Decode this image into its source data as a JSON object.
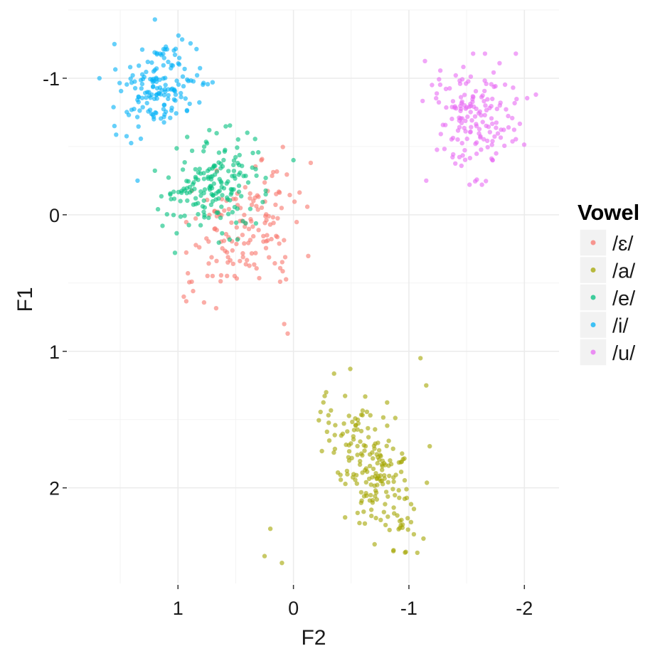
{
  "chart_data": {
    "type": "scatter",
    "xlabel": "F2",
    "ylabel": "F1",
    "x_reversed": true,
    "y_reversed": true,
    "xlim": [
      1.95,
      -2.3
    ],
    "ylim": [
      -1.5,
      2.7
    ],
    "x_ticks": [
      {
        "value": 1,
        "label": "1"
      },
      {
        "value": 0,
        "label": "0"
      },
      {
        "value": -1,
        "label": "-1"
      },
      {
        "value": -2,
        "label": "-2"
      }
    ],
    "y_ticks": [
      {
        "value": -1,
        "label": "-1"
      },
      {
        "value": 0,
        "label": "0"
      },
      {
        "value": 1,
        "label": "1"
      },
      {
        "value": 2,
        "label": "2"
      }
    ],
    "grid": true,
    "legend": {
      "title": "Vowel",
      "placement": "right"
    },
    "series": [
      {
        "name": "/ɛ/",
        "color": "#F8766D",
        "center": [
          0.4,
          0.1
        ],
        "spread": [
          0.22,
          0.22
        ],
        "correlation": 0.3,
        "n": 150,
        "seed": 11,
        "outliers": [
          [
            0.08,
            0.8
          ],
          [
            0.05,
            0.87
          ],
          [
            0.95,
            0.6
          ],
          [
            -0.15,
            -0.38
          ]
        ]
      },
      {
        "name": "/a/",
        "color": "#A3A500",
        "center": [
          -0.7,
          1.85
        ],
        "spread": [
          0.2,
          0.28
        ],
        "correlation": -0.55,
        "n": 200,
        "seed": 23,
        "outliers": [
          [
            0.25,
            2.5
          ],
          [
            0.1,
            2.55
          ],
          [
            -1.1,
            1.05
          ],
          [
            -1.15,
            1.25
          ],
          [
            0.2,
            2.3
          ]
        ]
      },
      {
        "name": "/e/",
        "color": "#00BF7D",
        "center": [
          0.72,
          -0.2
        ],
        "spread": [
          0.2,
          0.18
        ],
        "correlation": 0.2,
        "n": 175,
        "seed": 37,
        "outliers": [
          [
            0.0,
            -0.4
          ],
          [
            0.92,
            -0.57
          ]
        ]
      },
      {
        "name": "/i/",
        "color": "#00B0F6",
        "center": [
          1.15,
          -0.93
        ],
        "spread": [
          0.17,
          0.15
        ],
        "correlation": 0.25,
        "n": 155,
        "seed": 53,
        "outliers": [
          [
            1.2,
            -1.43
          ],
          [
            1.55,
            -1.25
          ],
          [
            1.68,
            -1.0
          ],
          [
            1.35,
            -0.25
          ],
          [
            0.7,
            -0.97
          ],
          [
            1.55,
            -0.65
          ]
        ]
      },
      {
        "name": "/u/",
        "color": "#E76BF3",
        "center": [
          -1.58,
          -0.7
        ],
        "spread": [
          0.2,
          0.2
        ],
        "correlation": 0.0,
        "n": 160,
        "seed": 71,
        "outliers": [
          [
            -2.1,
            -0.88
          ],
          [
            -1.15,
            -0.25
          ],
          [
            -1.2,
            -0.95
          ]
        ]
      }
    ]
  }
}
